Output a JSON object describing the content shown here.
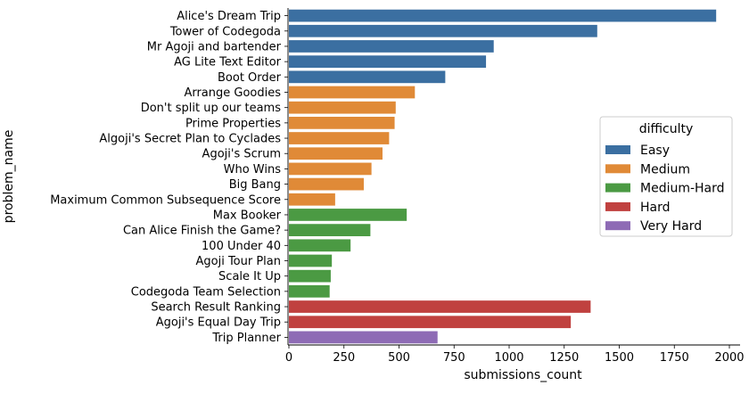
{
  "chart_data": {
    "type": "bar",
    "orientation": "horizontal",
    "title": "",
    "xlabel": "submissions_count",
    "ylabel": "problem_name",
    "xlim": [
      0,
      2000
    ],
    "x_ticks": [
      0,
      250,
      500,
      750,
      1000,
      1250,
      1500,
      1750,
      2000
    ],
    "grid": false,
    "legend": {
      "title": "difficulty",
      "placement": "center-right",
      "entries": [
        {
          "label": "Easy",
          "color": "#3b6fa1"
        },
        {
          "label": "Medium",
          "color": "#e08a37"
        },
        {
          "label": "Medium-Hard",
          "color": "#4b9a43"
        },
        {
          "label": "Hard",
          "color": "#c0413f"
        },
        {
          "label": "Very Hard",
          "color": "#8e6bb5"
        }
      ]
    },
    "bars": [
      {
        "category": "Alice's Dream Trip",
        "value": 1940,
        "difficulty": "Easy"
      },
      {
        "category": "Tower of Codegoda",
        "value": 1400,
        "difficulty": "Easy"
      },
      {
        "category": "Mr Agoji and bartender",
        "value": 930,
        "difficulty": "Easy"
      },
      {
        "category": "AG Lite Text Editor",
        "value": 895,
        "difficulty": "Easy"
      },
      {
        "category": "Boot Order",
        "value": 710,
        "difficulty": "Easy"
      },
      {
        "category": "Arrange Goodies",
        "value": 572,
        "difficulty": "Medium"
      },
      {
        "category": "Don't split up our teams",
        "value": 485,
        "difficulty": "Medium"
      },
      {
        "category": "Prime Properties",
        "value": 480,
        "difficulty": "Medium"
      },
      {
        "category": "Algoji's Secret Plan to Cyclades",
        "value": 455,
        "difficulty": "Medium"
      },
      {
        "category": "Agoji's Scrum",
        "value": 425,
        "difficulty": "Medium"
      },
      {
        "category": "Who Wins",
        "value": 375,
        "difficulty": "Medium"
      },
      {
        "category": "Big Bang",
        "value": 340,
        "difficulty": "Medium"
      },
      {
        "category": "Maximum Common Subsequence Score",
        "value": 210,
        "difficulty": "Medium"
      },
      {
        "category": "Max Booker",
        "value": 535,
        "difficulty": "Medium-Hard"
      },
      {
        "category": "Can Alice Finish the Game?",
        "value": 370,
        "difficulty": "Medium-Hard"
      },
      {
        "category": "100 Under 40",
        "value": 280,
        "difficulty": "Medium-Hard"
      },
      {
        "category": "Agoji Tour Plan",
        "value": 195,
        "difficulty": "Medium-Hard"
      },
      {
        "category": "Scale It Up",
        "value": 190,
        "difficulty": "Medium-Hard"
      },
      {
        "category": "Codegoda Team Selection",
        "value": 185,
        "difficulty": "Medium-Hard"
      },
      {
        "category": "Search Result Ranking",
        "value": 1370,
        "difficulty": "Hard"
      },
      {
        "category": "Agoji's Equal Day Trip",
        "value": 1280,
        "difficulty": "Hard"
      },
      {
        "category": "Trip Planner",
        "value": 675,
        "difficulty": "Very Hard"
      }
    ]
  }
}
